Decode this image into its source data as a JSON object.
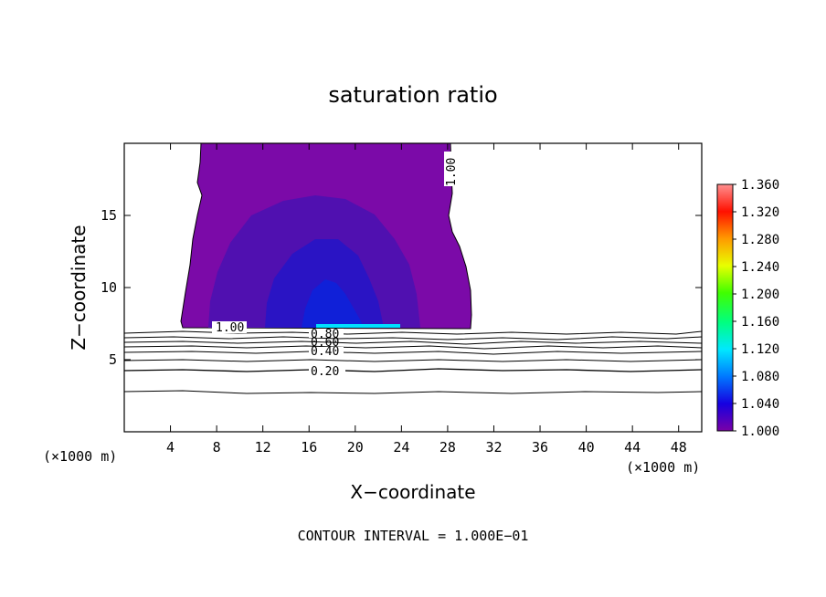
{
  "chart_data": {
    "type": "heatmap",
    "title": "saturation ratio",
    "xlabel": "X−coordinate",
    "ylabel": "Z−coordinate",
    "x_unit": "(×1000 m)",
    "y_unit": "(×1000 m)",
    "xlim": [
      0,
      50
    ],
    "ylim": [
      0,
      20
    ],
    "x_ticks": [
      "4",
      "8",
      "12",
      "16",
      "20",
      "24",
      "28",
      "32",
      "36",
      "40",
      "44",
      "48"
    ],
    "y_ticks": [
      "5",
      "10",
      "15"
    ],
    "contour_interval_text": "CONTOUR INTERVAL = 1.000E−01",
    "contour_labels": [
      "1.00",
      "1.00",
      "0.80",
      "0.60",
      "0.40",
      "0.20"
    ],
    "contour_levels": [
      0.2,
      0.3,
      0.4,
      0.5,
      0.6,
      0.7,
      0.8,
      0.9,
      1.0
    ],
    "colorbar": {
      "min": 1.0,
      "max": 1.36,
      "ticks": [
        "1.360",
        "1.320",
        "1.280",
        "1.240",
        "1.200",
        "1.160",
        "1.120",
        "1.080",
        "1.040",
        "1.000"
      ]
    },
    "supersaturated_region": {
      "x_range": [
        5,
        30
      ],
      "z_range": [
        7,
        20
      ],
      "max_value_approx": 1.12,
      "max_location": {
        "x": 20,
        "z": 7.2
      }
    },
    "colors": {
      "base": "#7b0aa8",
      "mid": "#5010b0",
      "core": "#2a14c4",
      "deep": "#1020d8",
      "peak": "#00e0ff"
    }
  }
}
